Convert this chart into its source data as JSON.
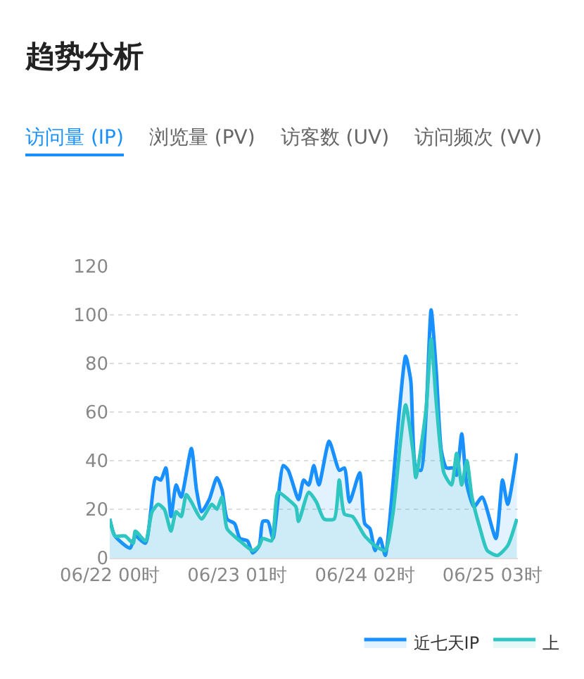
{
  "chart_data": {
    "type": "area",
    "title": "趋势分析",
    "annotations": [
      "访问量 (IP)",
      "浏览量 (PV)",
      "访客数 (UV)",
      "访问频次 (VV)"
    ],
    "xlim": [
      "--06-22T00:00",
      "--06-25T08:00"
    ],
    "xticks": [
      {
        "value": "--06-22T00:00",
        "label": "06/22 00时"
      },
      {
        "value": "--06-23T01:00",
        "label": "06/23 01时"
      },
      {
        "value": "--06-24T02:00",
        "label": "06/24 02时"
      },
      {
        "value": "--06-25T03:00",
        "label": "06/25 03时"
      }
    ],
    "ylim": [
      0,
      120
    ],
    "yticks": [
      0,
      20,
      40,
      60,
      80,
      100,
      120
    ],
    "grid": "y",
    "legend": "bottom right",
    "marker": "none",
    "line_style": "solid",
    "series": [
      {
        "name": "近七天IP",
        "color": "#1890ff",
        "x": [
          "--06-22T00:00",
          "--06-22T01:00",
          "--06-22T04:00",
          "--06-22T05:00",
          "--06-22T07:00",
          "--06-22T09:00",
          "--06-22T10:00",
          "--06-22T11:00",
          "--06-22T12:00",
          "--06-22T13:00",
          "--06-22T14:00",
          "--06-22T16:00",
          "--06-22T17:00",
          "--06-22T18:00",
          "--06-22T19:30",
          "--06-22T21:00",
          "--06-22T22:00",
          "--06-22T23:00",
          "--06-23T00:30",
          "--06-23T01:30",
          "--06-23T03:00",
          "--06-23T04:00",
          "--06-23T05:18",
          "--06-23T06:00",
          "--06-23T07:00",
          "--06-23T08:00",
          "--06-23T10:00",
          "--06-23T11:00",
          "--06-23T13:00",
          "--06-23T14:00",
          "--06-23T15:00",
          "--06-23T16:00",
          "--06-23T17:00",
          "--06-23T19:00",
          "--06-23T21:00",
          "--06-23T22:00",
          "--06-23T23:00",
          "--06-24T01:00",
          "--06-24T02:00",
          "--06-24T03:00",
          "--06-24T04:00",
          "--06-24T05:00",
          "--06-24T06:00",
          "--06-24T07:30",
          "--06-24T08:42",
          "--06-24T10:00",
          "--06-24T11:00",
          "--06-24T12:00",
          "--06-24T13:00",
          "--06-24T14:00",
          "--06-24T15:00",
          "--06-24T16:00",
          "--06-24T17:00",
          "--06-24T18:00",
          "--06-24T19:24",
          "--06-24T20:00",
          "--06-24T21:00",
          "--06-24T22:00",
          "--06-24T23:24",
          "--06-25T01:00",
          "--06-25T03:42",
          "--06-25T05:00",
          "--06-25T06:00",
          "--06-25T07:48"
        ],
        "values": [
          16,
          9,
          4,
          9,
          6,
          33,
          32,
          37,
          17,
          30,
          25,
          45,
          28,
          19,
          24,
          33,
          28,
          16,
          14,
          8,
          7,
          2,
          5,
          15,
          15,
          8,
          38,
          36,
          24,
          32,
          30,
          38,
          30,
          48,
          36,
          37,
          23,
          35,
          14,
          12,
          3,
          8,
          1,
          30,
          59,
          83,
          73,
          37,
          36,
          59,
          102,
          77,
          44,
          37,
          37,
          34,
          51,
          30,
          21,
          25,
          8,
          32,
          22,
          43
        ]
      },
      {
        "name": "上",
        "color": "#2fc5c0",
        "x": [
          "--06-22T00:00",
          "--06-22T01:00",
          "--06-22T03:00",
          "--06-22T04:36",
          "--06-22T05:00",
          "--06-22T07:00",
          "--06-22T08:18",
          "--06-22T09:30",
          "--06-22T10:42",
          "--06-22T12:00",
          "--06-22T13:00",
          "--06-22T14:00",
          "--06-22T15:00",
          "--06-22T16:00",
          "--06-22T18:00",
          "--06-22T20:00",
          "--06-22T21:00",
          "--06-22T22:00",
          "--06-22T23:00",
          "--06-23T01:30",
          "--06-23T04:00",
          "--06-23T05:18",
          "--06-23T06:00",
          "--06-23T07:42",
          "--06-23T09:00",
          "--06-23T11:00",
          "--06-23T12:30",
          "--06-23T13:00",
          "--06-23T15:00",
          "--06-23T16:30",
          "--06-23T18:00",
          "--06-23T20:00",
          "--06-23T21:00",
          "--06-23T22:00",
          "--06-23T23:36",
          "--06-24T02:00",
          "--06-24T04:00",
          "--06-24T06:00",
          "--06-24T07:30",
          "--06-24T09:00",
          "--06-24T10:00",
          "--06-24T11:30",
          "--06-24T12:00",
          "--06-24T14:00",
          "--06-24T15:00",
          "--06-24T16:00",
          "--06-24T17:30",
          "--06-24T19:00",
          "--06-24T20:00",
          "--06-24T21:00",
          "--06-24T22:00",
          "--06-24T23:00",
          "--06-25T00:36",
          "--06-25T02:00",
          "--06-25T04:00",
          "--06-25T06:00",
          "--06-25T07:48"
        ],
        "values": [
          16,
          9,
          9,
          6,
          11,
          7,
          19,
          22,
          20,
          11,
          19,
          17,
          26,
          23,
          16,
          22,
          20,
          25,
          12,
          7,
          3,
          5,
          8,
          7,
          27,
          24,
          21,
          15,
          27,
          23,
          16,
          16,
          32,
          18,
          17,
          9,
          5,
          3,
          18,
          48,
          63,
          43,
          33,
          61,
          90,
          64,
          35,
          30,
          43,
          30,
          40,
          25,
          12,
          3,
          1,
          5,
          16
        ]
      }
    ]
  }
}
